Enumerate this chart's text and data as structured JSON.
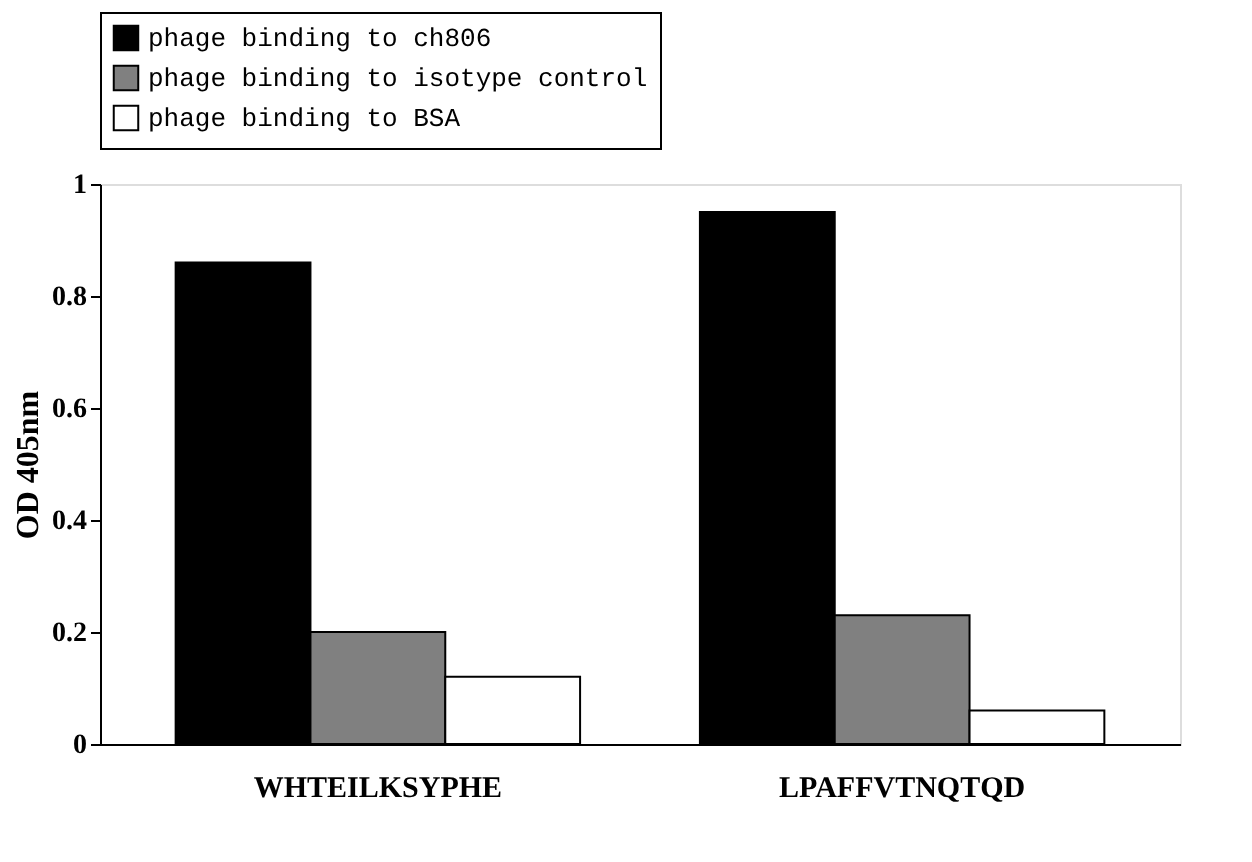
{
  "chart_data": {
    "type": "bar",
    "categories": [
      "WHTEILKSYPHE",
      "LPAFFVTNQTQD"
    ],
    "ylabel": "OD 405nm",
    "series": [
      {
        "name": "phage binding to ch806",
        "color": "#000000",
        "values": [
          0.86,
          0.95
        ]
      },
      {
        "name": "phage binding to isotype control",
        "color": "#808080",
        "values": [
          0.2,
          0.23
        ]
      },
      {
        "name": "phage binding to BSA",
        "color": "#ffffff",
        "values": [
          0.12,
          0.06
        ]
      }
    ],
    "ylim": [
      0,
      1
    ],
    "yticks": [
      0,
      0.2,
      0.4,
      0.6,
      0.8,
      1
    ],
    "grid": false,
    "legend": "top"
  }
}
